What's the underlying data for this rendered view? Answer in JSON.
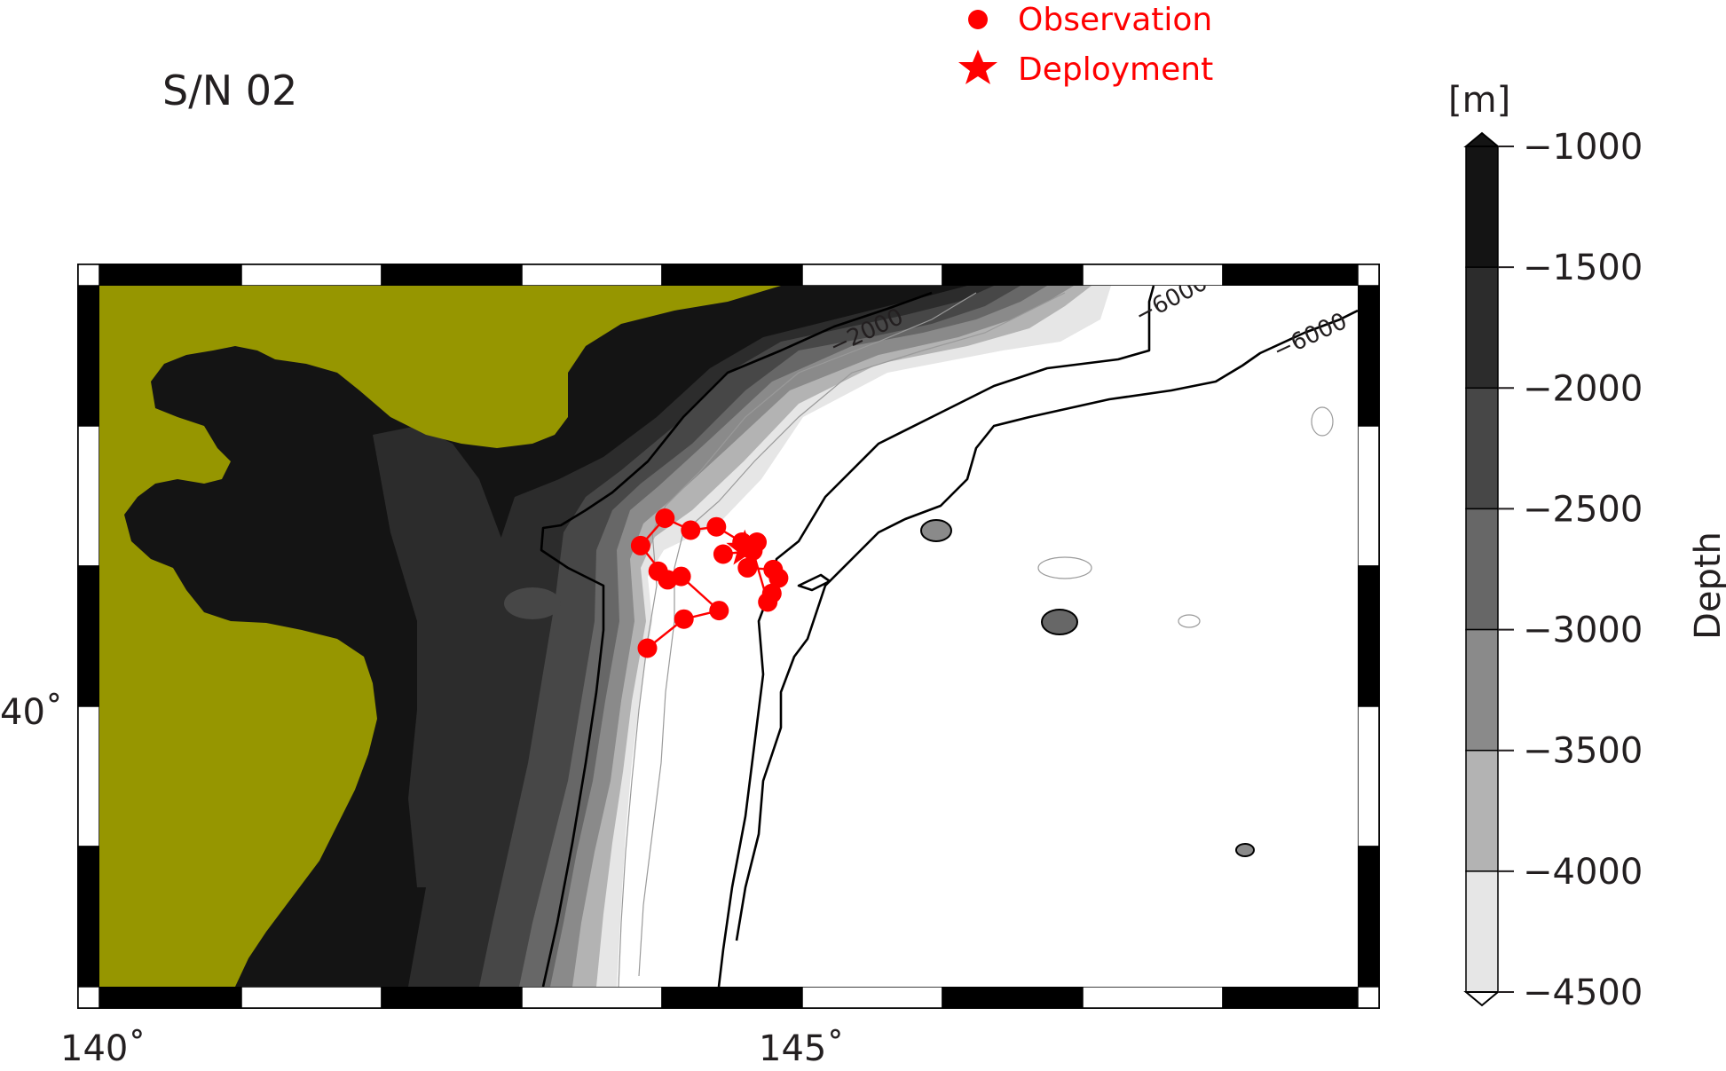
{
  "title": "S/N 02",
  "legend": {
    "observation": "Observation",
    "deployment": "Deployment",
    "colors": {
      "marker": "#ff0000"
    }
  },
  "colorbar": {
    "unit": "[m]",
    "label": "Depth",
    "ticks": [
      "−1000",
      "−1500",
      "−2000",
      "−2500",
      "−3000",
      "−3500",
      "−4000",
      "−4500"
    ],
    "levels": [
      -1000,
      -1500,
      -2000,
      -2500,
      -3000,
      -3500,
      -4000,
      -4500
    ],
    "colors": [
      "#141414",
      "#2c2c2c",
      "#474747",
      "#676767",
      "#8a8a8a",
      "#b3b3b3",
      "#e6e6e6",
      "#ffffff"
    ]
  },
  "map": {
    "x_ticks": [
      "140˚",
      "145˚"
    ],
    "y_ticks": [
      "40˚"
    ],
    "lon_range": [
      140,
      149.3
    ],
    "lat_range": [
      38.0,
      42.1
    ],
    "land_color": "#969600",
    "contour_labels": [
      "−2000",
      "−6000",
      "−6000"
    ]
  },
  "observations": [
    {
      "lon": 144.05,
      "lat": 39.98
    },
    {
      "lon": 144.32,
      "lat": 40.15
    },
    {
      "lon": 144.58,
      "lat": 40.2
    },
    {
      "lon": 144.3,
      "lat": 40.4
    },
    {
      "lon": 144.13,
      "lat": 40.43
    },
    {
      "lon": 144.2,
      "lat": 40.38
    },
    {
      "lon": 144.0,
      "lat": 40.58
    },
    {
      "lon": 144.18,
      "lat": 40.74
    },
    {
      "lon": 144.37,
      "lat": 40.67
    },
    {
      "lon": 144.56,
      "lat": 40.69
    },
    {
      "lon": 144.75,
      "lat": 40.6
    },
    {
      "lon": 144.86,
      "lat": 40.6
    },
    {
      "lon": 144.79,
      "lat": 40.45
    },
    {
      "lon": 144.98,
      "lat": 40.44
    },
    {
      "lon": 145.02,
      "lat": 40.39
    },
    {
      "lon": 144.97,
      "lat": 40.3
    },
    {
      "lon": 144.94,
      "lat": 40.25
    },
    {
      "lon": 144.83,
      "lat": 40.55
    },
    {
      "lon": 144.61,
      "lat": 40.53
    }
  ],
  "deployment": {
    "lon": 144.77,
    "lat": 40.56
  }
}
